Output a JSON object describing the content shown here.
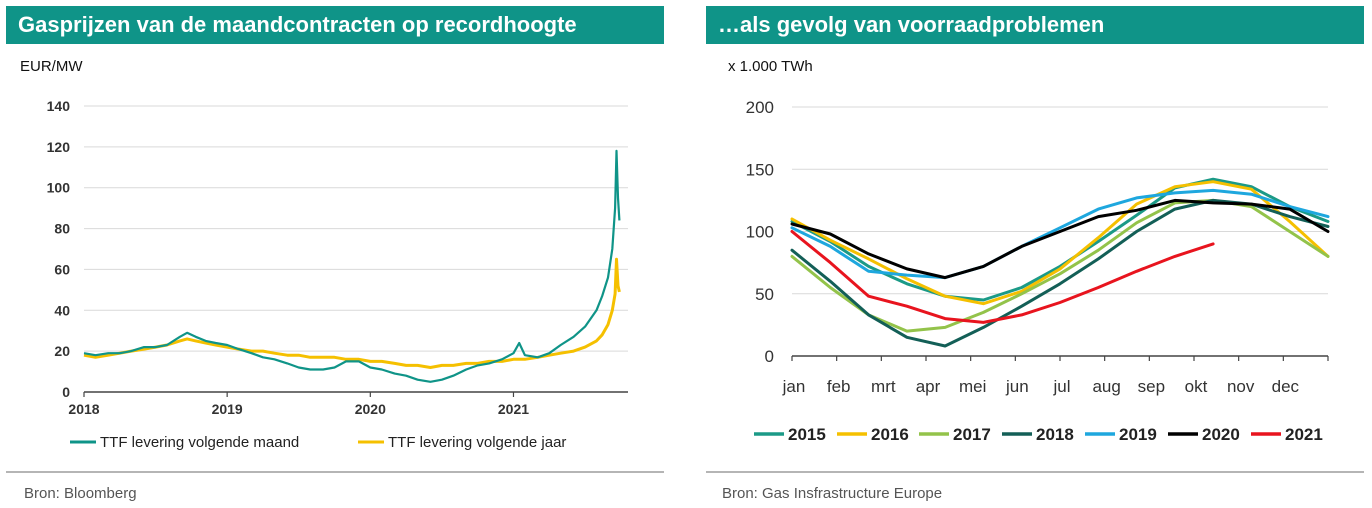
{
  "left": {
    "title": "Gasprijzen van de maandcontracten op recordhoogte",
    "unit": "EUR/MW",
    "source": "Bron: Bloomberg"
  },
  "right": {
    "title": "…als gevolg van voorraadproblemen",
    "unit": "x 1.000 TWh",
    "source": "Bron: Gas Insfrastructure Europe"
  },
  "colors": {
    "header_bg": "#0f9488",
    "teal": "#0f9488",
    "yellow": "#f5c000",
    "c2015": "#1b9a87",
    "c2016": "#f5c000",
    "c2017": "#93c34a",
    "c2018": "#135f57",
    "c2019": "#1ea7de",
    "c2020": "#000000",
    "c2021": "#e8141e"
  },
  "chart_data": [
    {
      "type": "line",
      "xlim": [
        2018.0,
        2021.8
      ],
      "ylim": [
        0,
        140
      ],
      "yticks": [
        "0",
        "20",
        "40",
        "60",
        "80",
        "100",
        "120",
        "140"
      ],
      "xticks": [
        "2018",
        "2019",
        "2020",
        "2021"
      ],
      "grid": true,
      "legend": "bottom",
      "series": [
        {
          "name": "TTF levering volgende maand",
          "color": "#0f9488",
          "points": [
            [
              2018.0,
              19
            ],
            [
              2018.08,
              18
            ],
            [
              2018.17,
              19
            ],
            [
              2018.25,
              19
            ],
            [
              2018.33,
              20
            ],
            [
              2018.42,
              22
            ],
            [
              2018.5,
              22
            ],
            [
              2018.58,
              23
            ],
            [
              2018.67,
              27
            ],
            [
              2018.72,
              29
            ],
            [
              2018.78,
              27
            ],
            [
              2018.85,
              25
            ],
            [
              2018.92,
              24
            ],
            [
              2019.0,
              23
            ],
            [
              2019.08,
              21
            ],
            [
              2019.17,
              19
            ],
            [
              2019.25,
              17
            ],
            [
              2019.33,
              16
            ],
            [
              2019.42,
              14
            ],
            [
              2019.5,
              12
            ],
            [
              2019.58,
              11
            ],
            [
              2019.67,
              11
            ],
            [
              2019.75,
              12
            ],
            [
              2019.83,
              15
            ],
            [
              2019.92,
              15
            ],
            [
              2020.0,
              12
            ],
            [
              2020.08,
              11
            ],
            [
              2020.17,
              9
            ],
            [
              2020.25,
              8
            ],
            [
              2020.33,
              6
            ],
            [
              2020.42,
              5
            ],
            [
              2020.5,
              6
            ],
            [
              2020.58,
              8
            ],
            [
              2020.67,
              11
            ],
            [
              2020.75,
              13
            ],
            [
              2020.83,
              14
            ],
            [
              2020.92,
              16
            ],
            [
              2021.0,
              19
            ],
            [
              2021.04,
              24
            ],
            [
              2021.08,
              18
            ],
            [
              2021.17,
              17
            ],
            [
              2021.25,
              19
            ],
            [
              2021.33,
              23
            ],
            [
              2021.42,
              27
            ],
            [
              2021.5,
              32
            ],
            [
              2021.58,
              40
            ],
            [
              2021.62,
              47
            ],
            [
              2021.66,
              56
            ],
            [
              2021.69,
              70
            ],
            [
              2021.71,
              90
            ],
            [
              2021.72,
              118
            ],
            [
              2021.73,
              95
            ],
            [
              2021.74,
              84
            ]
          ]
        },
        {
          "name": "TTF levering volgende jaar",
          "color": "#f5c000",
          "points": [
            [
              2018.0,
              18
            ],
            [
              2018.08,
              17
            ],
            [
              2018.17,
              18
            ],
            [
              2018.25,
              19
            ],
            [
              2018.33,
              20
            ],
            [
              2018.42,
              21
            ],
            [
              2018.5,
              22
            ],
            [
              2018.58,
              23
            ],
            [
              2018.67,
              25
            ],
            [
              2018.72,
              26
            ],
            [
              2018.78,
              25
            ],
            [
              2018.85,
              24
            ],
            [
              2018.92,
              23
            ],
            [
              2019.0,
              22
            ],
            [
              2019.08,
              21
            ],
            [
              2019.17,
              20
            ],
            [
              2019.25,
              20
            ],
            [
              2019.33,
              19
            ],
            [
              2019.42,
              18
            ],
            [
              2019.5,
              18
            ],
            [
              2019.58,
              17
            ],
            [
              2019.67,
              17
            ],
            [
              2019.75,
              17
            ],
            [
              2019.83,
              16
            ],
            [
              2019.92,
              16
            ],
            [
              2020.0,
              15
            ],
            [
              2020.08,
              15
            ],
            [
              2020.17,
              14
            ],
            [
              2020.25,
              13
            ],
            [
              2020.33,
              13
            ],
            [
              2020.42,
              12
            ],
            [
              2020.5,
              13
            ],
            [
              2020.58,
              13
            ],
            [
              2020.67,
              14
            ],
            [
              2020.75,
              14
            ],
            [
              2020.83,
              15
            ],
            [
              2020.92,
              15
            ],
            [
              2021.0,
              16
            ],
            [
              2021.08,
              16
            ],
            [
              2021.17,
              17
            ],
            [
              2021.25,
              18
            ],
            [
              2021.33,
              19
            ],
            [
              2021.42,
              20
            ],
            [
              2021.5,
              22
            ],
            [
              2021.58,
              25
            ],
            [
              2021.62,
              28
            ],
            [
              2021.66,
              33
            ],
            [
              2021.69,
              40
            ],
            [
              2021.71,
              48
            ],
            [
              2021.72,
              65
            ],
            [
              2021.73,
              52
            ],
            [
              2021.74,
              49
            ]
          ]
        }
      ]
    },
    {
      "type": "line",
      "xlim": [
        0,
        12
      ],
      "ylim": [
        0,
        200
      ],
      "yticks": [
        "0",
        "50",
        "100",
        "150",
        "200"
      ],
      "xticks": [
        "jan",
        "feb",
        "mrt",
        "apr",
        "mei",
        "jun",
        "jul",
        "aug",
        "sep",
        "okt",
        "nov",
        "dec"
      ],
      "grid": true,
      "legend": "bottom",
      "series": [
        {
          "name": "2015",
          "color": "#1b9a87",
          "values": [
            108,
            92,
            72,
            58,
            48,
            45,
            55,
            72,
            92,
            113,
            135,
            142,
            136,
            120,
            108
          ]
        },
        {
          "name": "2016",
          "color": "#f5c000",
          "values": [
            110,
            93,
            78,
            62,
            48,
            42,
            52,
            70,
            95,
            122,
            136,
            140,
            134,
            108,
            80
          ]
        },
        {
          "name": "2017",
          "color": "#93c34a",
          "values": [
            80,
            55,
            33,
            20,
            23,
            35,
            50,
            66,
            85,
            107,
            123,
            125,
            120,
            100,
            80
          ]
        },
        {
          "name": "2018",
          "color": "#135f57",
          "values": [
            85,
            60,
            33,
            15,
            8,
            23,
            40,
            58,
            78,
            100,
            118,
            125,
            122,
            112,
            104
          ]
        },
        {
          "name": "2019",
          "color": "#1ea7de",
          "values": [
            103,
            88,
            68,
            65,
            63,
            72,
            88,
            103,
            118,
            127,
            131,
            133,
            130,
            120,
            112
          ]
        },
        {
          "name": "2020",
          "color": "#000000",
          "values": [
            106,
            98,
            82,
            70,
            63,
            72,
            88,
            100,
            112,
            117,
            125,
            123,
            122,
            118,
            100
          ]
        },
        {
          "name": "2021",
          "color": "#e8141e",
          "values": [
            100,
            75,
            48,
            40,
            30,
            27,
            33,
            43,
            55,
            68,
            80,
            90
          ]
        }
      ]
    }
  ]
}
